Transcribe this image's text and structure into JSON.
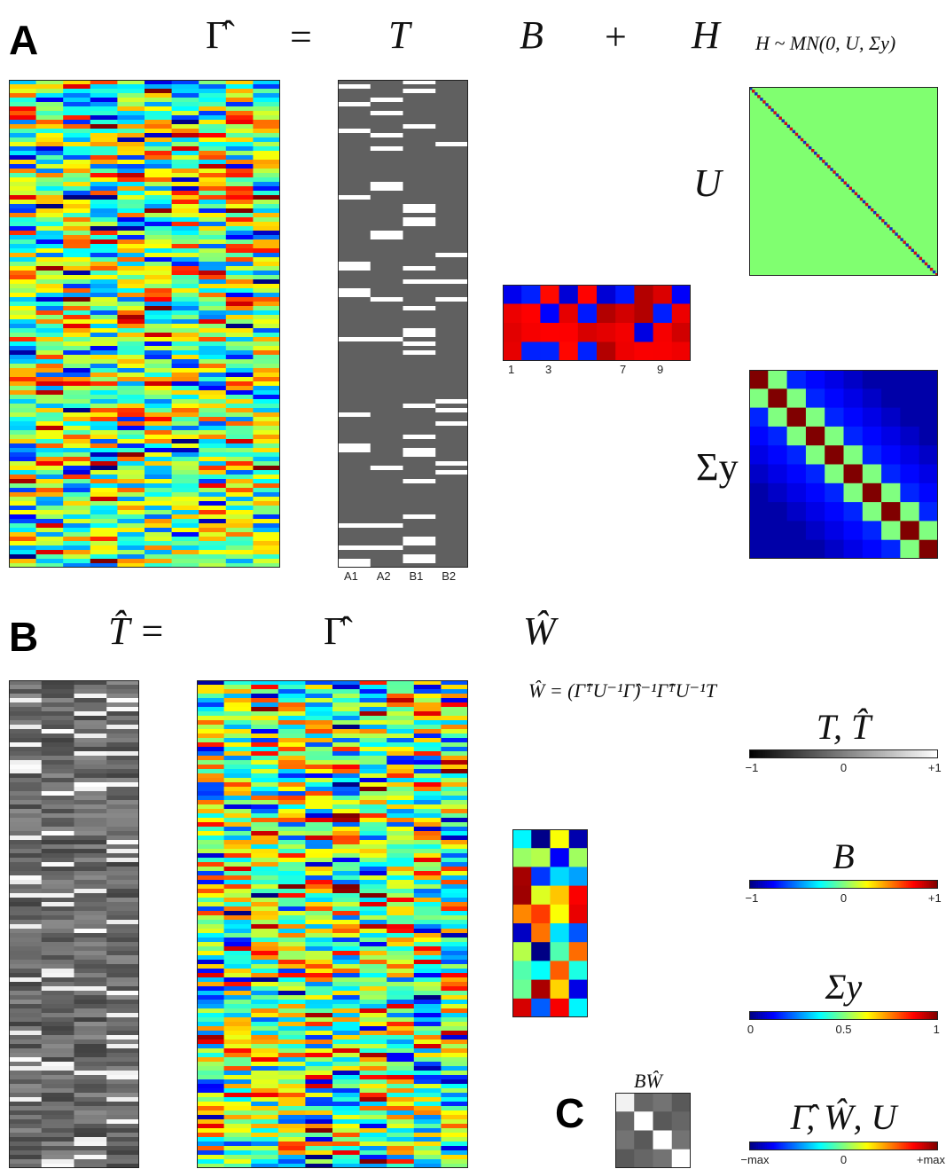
{
  "panels": {
    "a": "A",
    "b": "B",
    "c": "C"
  },
  "eq_a": {
    "gamma_hat": "Γ̂",
    "equals": "=",
    "t": "T",
    "b": "B",
    "plus": "+",
    "h": "H",
    "h_dist": "H ~ MN(0, U, Σy)"
  },
  "eq_b": {
    "t_hat": "T̂ =",
    "gamma_hat": "Γ̂",
    "w_hat": "Ŵ",
    "w_formula": "Ŵ = (Γ̂ᵀU⁻¹Γ̂)⁻¹Γ̂ᵀU⁻¹T"
  },
  "u_label": "U",
  "sigma_label": "Σy",
  "bw_label": "BŴ",
  "t_columns": [
    "A1",
    "A2",
    "B1",
    "B2"
  ],
  "b_columns": [
    "1",
    "3",
    "7",
    "9"
  ],
  "colorbars": [
    {
      "title": "T, T̂",
      "ticks": [
        "−1",
        "0",
        "+1"
      ],
      "cmap": "gray"
    },
    {
      "title": "B",
      "ticks": [
        "−1",
        "0",
        "+1"
      ],
      "cmap": "jet"
    },
    {
      "title": "Σy",
      "ticks": [
        "0",
        "0.5",
        "1"
      ],
      "cmap": "jet"
    },
    {
      "title": "Γ̂, Ŵ, U",
      "ticks": [
        "−max",
        "0",
        "+max"
      ],
      "cmap": "jet"
    }
  ],
  "colors": {
    "jet_blue": "#00008f",
    "jet_red": "#800000",
    "t_gray": "#606060",
    "u_bg": "#80ff70"
  }
}
